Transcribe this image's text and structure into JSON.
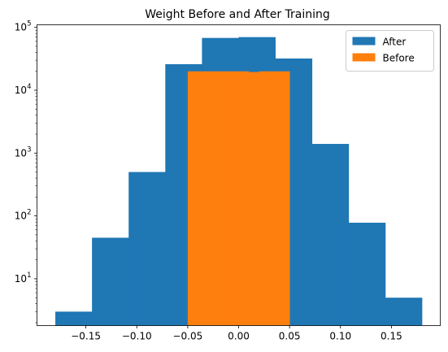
{
  "chart_data": {
    "type": "bar",
    "title": "Weight Before and After Training",
    "xlabel": "",
    "ylabel": "",
    "yscale": "log",
    "xlim": [
      -0.198,
      0.198
    ],
    "ylim": [
      1.8,
      110000
    ],
    "grid": false,
    "legend_position": "top-right",
    "x_ticks": [
      -0.15,
      -0.1,
      -0.05,
      0.0,
      0.05,
      0.1,
      0.15
    ],
    "x_tick_labels": [
      "−0.15",
      "−0.10",
      "−0.05",
      "0.00",
      "0.05",
      "0.10",
      "0.15"
    ],
    "y_ticks": [
      10,
      100,
      1000,
      10000,
      100000
    ],
    "y_tick_labels": [
      {
        "base": "10",
        "exp": "1"
      },
      {
        "base": "10",
        "exp": "2"
      },
      {
        "base": "10",
        "exp": "3"
      },
      {
        "base": "10",
        "exp": "4"
      },
      {
        "base": "10",
        "exp": "5"
      }
    ],
    "series": [
      {
        "name": "After",
        "color": "#1f77b4",
        "bins": [
          {
            "x0": -0.18,
            "x1": -0.144,
            "count": 3
          },
          {
            "x0": -0.144,
            "x1": -0.108,
            "count": 45
          },
          {
            "x0": -0.108,
            "x1": -0.072,
            "count": 500
          },
          {
            "x0": -0.072,
            "x1": -0.036,
            "count": 26000
          },
          {
            "x0": -0.036,
            "x1": 0.0,
            "count": 68000
          },
          {
            "x0": 0.0,
            "x1": 0.036,
            "count": 70000
          },
          {
            "x0": 0.036,
            "x1": 0.072,
            "count": 32000
          },
          {
            "x0": 0.072,
            "x1": 0.108,
            "count": 1400
          },
          {
            "x0": 0.108,
            "x1": 0.144,
            "count": 78
          },
          {
            "x0": 0.144,
            "x1": 0.18,
            "count": 5
          }
        ]
      },
      {
        "name": "Before",
        "color": "#ff7f0e",
        "bins": [
          {
            "x0": -0.05,
            "x1": -0.04,
            "count": 20000
          },
          {
            "x0": -0.04,
            "x1": -0.03,
            "count": 20000
          },
          {
            "x0": -0.03,
            "x1": -0.02,
            "count": 20000
          },
          {
            "x0": -0.02,
            "x1": -0.01,
            "count": 20000
          },
          {
            "x0": -0.01,
            "x1": 0.0,
            "count": 20000
          },
          {
            "x0": 0.0,
            "x1": 0.01,
            "count": 20000
          },
          {
            "x0": 0.01,
            "x1": 0.02,
            "count": 19500
          },
          {
            "x0": 0.02,
            "x1": 0.03,
            "count": 20000
          },
          {
            "x0": 0.03,
            "x1": 0.04,
            "count": 20000
          },
          {
            "x0": 0.04,
            "x1": 0.05,
            "count": 20000
          }
        ]
      }
    ]
  }
}
